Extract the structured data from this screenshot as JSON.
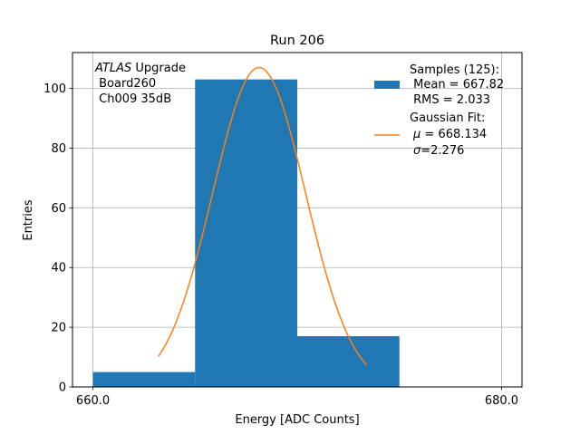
{
  "chart_data": {
    "type": "bar",
    "title": "Run 206",
    "xlabel": "Energy [ADC Counts]",
    "ylabel": "Entries",
    "xlim": [
      659,
      681
    ],
    "ylim": [
      0,
      112
    ],
    "grid": true,
    "xticks": [
      660.0,
      680.0
    ],
    "xtick_labels": [
      "660.0",
      "680.0"
    ],
    "yticks": [
      0,
      20,
      40,
      60,
      80,
      100
    ],
    "ytick_labels": [
      "0",
      "20",
      "40",
      "60",
      "80",
      "100"
    ],
    "bins": [
      {
        "x0": 660.0,
        "x1": 665.0,
        "value": 5
      },
      {
        "x0": 665.0,
        "x1": 670.0,
        "value": 103
      },
      {
        "x0": 670.0,
        "x1": 675.0,
        "value": 17
      }
    ],
    "bar_color": "#1f77b4",
    "fit": {
      "name": "Gaussian Fit",
      "mu": 668.134,
      "sigma": 2.276,
      "peak": 107,
      "x_range": [
        663.2,
        673.4
      ],
      "color": "#ff7f0e"
    },
    "annotation": {
      "line1_italic": "ATLAS",
      "line1_rest": " Upgrade",
      "line2": " Board260",
      "line3": " Ch009 35dB"
    },
    "legend": {
      "placement": "top-right",
      "samples_line1": "Samples (125):",
      "samples_line2": " Mean = 667.82",
      "samples_line3": " RMS = 2.033",
      "fit_line1": "Gaussian Fit:",
      "fit_line2_symbol": "μ",
      "fit_line2_rest": " = 668.134",
      "fit_line3_symbol": "σ",
      "fit_line3_rest": "=2.276"
    }
  }
}
